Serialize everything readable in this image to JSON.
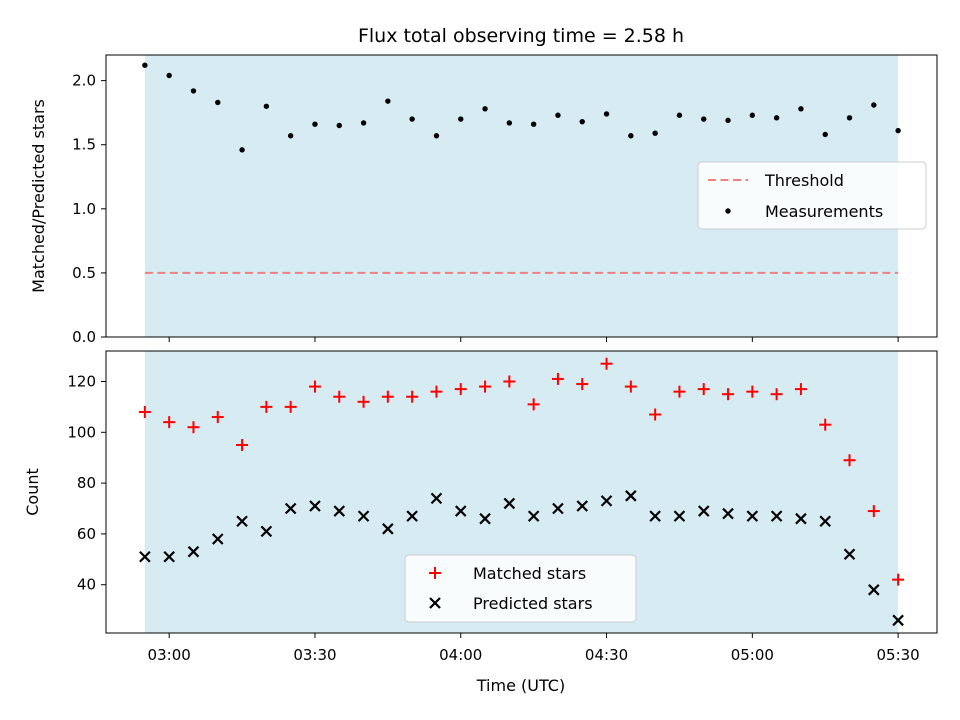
{
  "chart_data": [
    {
      "type": "scatter",
      "title": "Flux total observing time = 2.58 h",
      "xlabel": "",
      "ylabel": "Matched/Predicted stars",
      "ylim": [
        0,
        2.2
      ],
      "y_ticks": [
        "0.0",
        "0.5",
        "1.0",
        "1.5",
        "2.0"
      ],
      "observing_window": [
        "02:55",
        "05:30"
      ],
      "legend": {
        "placement": "center-right",
        "entries": [
          "Threshold",
          "Measurements"
        ]
      },
      "threshold": {
        "name": "Threshold",
        "value": 0.5,
        "color": "#f08080"
      },
      "series": [
        {
          "name": "Measurements",
          "color": "#000000",
          "x": [
            "02:55",
            "03:00",
            "03:05",
            "03:10",
            "03:15",
            "03:20",
            "03:25",
            "03:30",
            "03:35",
            "03:40",
            "03:45",
            "03:50",
            "03:55",
            "04:00",
            "04:05",
            "04:10",
            "04:15",
            "04:20",
            "04:25",
            "04:30",
            "04:35",
            "04:40",
            "04:45",
            "04:50",
            "04:55",
            "05:00",
            "05:05",
            "05:10",
            "05:15",
            "05:20",
            "05:25",
            "05:30"
          ],
          "values": [
            2.12,
            2.04,
            1.92,
            1.83,
            1.46,
            1.8,
            1.57,
            1.66,
            1.65,
            1.67,
            1.84,
            1.7,
            1.57,
            1.7,
            1.78,
            1.67,
            1.66,
            1.73,
            1.68,
            1.74,
            1.57,
            1.59,
            1.73,
            1.7,
            1.69,
            1.73,
            1.71,
            1.78,
            1.58,
            1.71,
            1.81,
            1.61
          ]
        }
      ]
    },
    {
      "type": "scatter",
      "title": "",
      "xlabel": "Time (UTC)",
      "ylabel": "Count",
      "ylim": [
        21,
        132
      ],
      "y_ticks": [
        "40",
        "60",
        "80",
        "100",
        "120"
      ],
      "x_ticks": [
        "03:00",
        "03:30",
        "04:00",
        "04:30",
        "05:00",
        "05:30"
      ],
      "observing_window": [
        "02:55",
        "05:30"
      ],
      "legend": {
        "placement": "lower-center",
        "entries": [
          "Matched stars",
          "Predicted stars"
        ]
      },
      "series": [
        {
          "name": "Matched stars",
          "marker": "+",
          "color": "#ff0000",
          "x": [
            "02:55",
            "03:00",
            "03:05",
            "03:10",
            "03:15",
            "03:20",
            "03:25",
            "03:30",
            "03:35",
            "03:40",
            "03:45",
            "03:50",
            "03:55",
            "04:00",
            "04:05",
            "04:10",
            "04:15",
            "04:20",
            "04:25",
            "04:30",
            "04:35",
            "04:40",
            "04:45",
            "04:50",
            "04:55",
            "05:00",
            "05:05",
            "05:10",
            "05:15",
            "05:20",
            "05:25",
            "05:30"
          ],
          "values": [
            108,
            104,
            102,
            106,
            95,
            110,
            110,
            118,
            114,
            112,
            114,
            114,
            116,
            117,
            118,
            120,
            111,
            121,
            119,
            127,
            118,
            107,
            116,
            117,
            115,
            116,
            115,
            117,
            103,
            89,
            69,
            42
          ]
        },
        {
          "name": "Predicted stars",
          "marker": "x",
          "color": "#000000",
          "x": [
            "02:55",
            "03:00",
            "03:05",
            "03:10",
            "03:15",
            "03:20",
            "03:25",
            "03:30",
            "03:35",
            "03:40",
            "03:45",
            "03:50",
            "03:55",
            "04:00",
            "04:05",
            "04:10",
            "04:15",
            "04:20",
            "04:25",
            "04:30",
            "04:35",
            "04:40",
            "04:45",
            "04:50",
            "04:55",
            "05:00",
            "05:05",
            "05:10",
            "05:15",
            "05:20",
            "05:25",
            "05:30"
          ],
          "values": [
            51,
            51,
            53,
            58,
            65,
            61,
            70,
            71,
            69,
            67,
            62,
            67,
            74,
            69,
            66,
            72,
            67,
            70,
            71,
            73,
            75,
            67,
            67,
            69,
            68,
            67,
            67,
            66,
            65,
            52,
            38,
            26
          ]
        }
      ]
    }
  ],
  "colors": {
    "shade": "#add8e6"
  }
}
